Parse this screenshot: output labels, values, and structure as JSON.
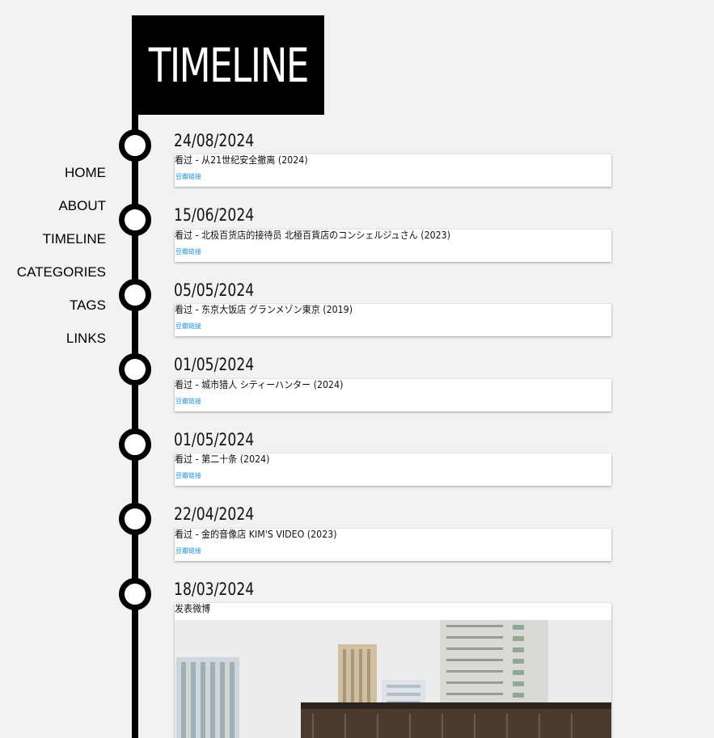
{
  "header": {
    "title": "TIMELINE"
  },
  "nav": {
    "items": [
      {
        "label": "HOME"
      },
      {
        "label": "ABOUT"
      },
      {
        "label": "TIMELINE"
      },
      {
        "label": "CATEGORIES"
      },
      {
        "label": "TAGS"
      },
      {
        "label": "LINKS"
      }
    ]
  },
  "entries": [
    {
      "date": "24/08/2024",
      "text": "看过 - 从21世纪安全撤离 (2024)",
      "link": "豆瓣链接"
    },
    {
      "date": "15/06/2024",
      "text": "看过 - 北极百货店的接待员 北極百貨店のコンシェルジュさん (2023)",
      "link": "豆瓣链接"
    },
    {
      "date": "05/05/2024",
      "text": "看过 - 东京大饭店 グランメゾン東京 (2019)",
      "link": "豆瓣链接"
    },
    {
      "date": "01/05/2024",
      "text": "看过 - 城市猎人 シティーハンター (2024)",
      "link": "豆瓣链接"
    },
    {
      "date": "01/05/2024",
      "text": "看过 - 第二十条 (2024)",
      "link": "豆瓣链接"
    },
    {
      "date": "22/04/2024",
      "text": "看过 - 金的音像店 KIM'S VIDEO (2023)",
      "link": "豆瓣链接"
    },
    {
      "date": "18/03/2024",
      "text": "发表微博"
    }
  ],
  "colors": {
    "background": "#f2f2f2",
    "accent": "#000000",
    "link": "#1a8fd0"
  }
}
